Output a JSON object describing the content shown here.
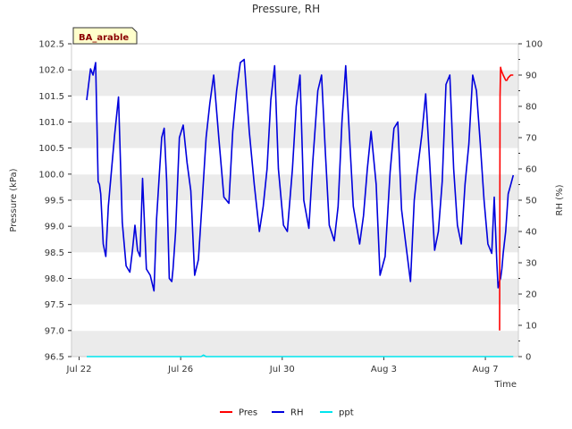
{
  "chart_data": {
    "type": "line",
    "title": "Pressure, RH",
    "badge": "BA_arable",
    "xlabel": "Time",
    "ylabel_left": "Pressure (kPa)",
    "ylabel_right": "RH (%)",
    "x_unit": "days since Jul 22",
    "xlim": [
      -0.3,
      17.3
    ],
    "ylim_left": [
      96.5,
      102.5
    ],
    "ylim_right": [
      0,
      100
    ],
    "left_ticks": [
      "96.5",
      "97.0",
      "97.5",
      "98.0",
      "98.5",
      "99.0",
      "99.5",
      "100.0",
      "100.5",
      "101.0",
      "101.5",
      "102.0",
      "102.5"
    ],
    "right_ticks": [
      "0",
      "10",
      "20",
      "30",
      "40",
      "50",
      "60",
      "70",
      "80",
      "90",
      "100"
    ],
    "x_ticks": [
      {
        "label": "Jul 22",
        "value": 0
      },
      {
        "label": "Jul 26",
        "value": 4
      },
      {
        "label": "Jul 30",
        "value": 8
      },
      {
        "label": "Aug 3",
        "value": 12
      },
      {
        "label": "Aug 7",
        "value": 16
      }
    ],
    "grid": "horizontal alternating bands",
    "legend_position": "bottom-center",
    "series": [
      {
        "name": "Pres",
        "color": "#ff0000",
        "axis": "left",
        "x": [
          16.56,
          16.58,
          16.6,
          16.62,
          16.66,
          16.7,
          16.75,
          16.8,
          16.85,
          16.9,
          17.0,
          17.1
        ],
        "values": [
          97.0,
          101.5,
          102.05,
          102.0,
          101.95,
          101.9,
          101.85,
          101.8,
          101.8,
          101.85,
          101.9,
          101.9
        ]
      },
      {
        "name": "RH",
        "color": "#0000dd",
        "axis": "right",
        "x": [
          0.3,
          0.45,
          0.55,
          0.65,
          0.75,
          0.8,
          0.85,
          0.95,
          1.05,
          1.15,
          1.3,
          1.4,
          1.55,
          1.7,
          1.85,
          2.0,
          2.1,
          2.2,
          2.3,
          2.4,
          2.5,
          2.65,
          2.8,
          2.95,
          3.05,
          3.15,
          3.25,
          3.35,
          3.45,
          3.55,
          3.65,
          3.7,
          3.8,
          3.95,
          4.1,
          4.25,
          4.4,
          4.55,
          4.7,
          4.85,
          5.0,
          5.15,
          5.3,
          5.5,
          5.7,
          5.9,
          6.05,
          6.2,
          6.35,
          6.5,
          6.7,
          6.9,
          7.1,
          7.25,
          7.4,
          7.55,
          7.7,
          7.85,
          8.05,
          8.2,
          8.4,
          8.55,
          8.7,
          8.85,
          9.05,
          9.2,
          9.4,
          9.55,
          9.7,
          9.85,
          10.05,
          10.2,
          10.35,
          10.5,
          10.65,
          10.8,
          11.05,
          11.2,
          11.35,
          11.5,
          11.7,
          11.85,
          12.05,
          12.25,
          12.4,
          12.55,
          12.7,
          12.85,
          13.05,
          13.2,
          13.3,
          13.5,
          13.65,
          13.8,
          14.0,
          14.15,
          14.3,
          14.45,
          14.6,
          14.75,
          14.9,
          15.05,
          15.2,
          15.35,
          15.5,
          15.65,
          15.8,
          15.95,
          16.1,
          16.25,
          16.35,
          16.45,
          16.5,
          16.55,
          16.6,
          16.65,
          16.7,
          16.8,
          16.9,
          17.0,
          17.1
        ],
        "values": [
          82,
          92,
          90,
          94,
          56,
          55,
          52,
          36,
          32,
          48,
          62,
          71,
          83,
          43,
          29,
          27,
          34,
          42,
          34,
          32,
          57,
          28,
          26,
          21,
          44,
          57,
          70,
          73,
          56,
          25,
          24,
          28,
          40,
          70,
          74,
          62,
          53,
          26,
          31,
          50,
          70,
          81,
          90,
          70,
          51,
          49,
          72,
          85,
          94,
          95,
          72,
          55,
          40,
          48,
          60,
          82,
          93,
          60,
          42,
          40,
          60,
          80,
          90,
          50,
          41,
          62,
          85,
          90,
          65,
          42,
          37,
          48,
          75,
          93,
          70,
          48,
          36,
          45,
          60,
          72,
          55,
          26,
          32,
          59,
          73,
          75,
          47,
          37,
          24,
          50,
          58,
          71,
          84,
          63,
          34,
          40,
          56,
          87,
          90,
          60,
          42,
          36,
          55,
          68,
          90,
          85,
          68,
          50,
          36,
          33,
          51,
          30,
          22,
          24,
          25,
          28,
          33,
          40,
          52,
          55,
          58
        ]
      },
      {
        "name": "ppt",
        "color": "#00e5ee",
        "axis": "right",
        "x": [
          0.3,
          4.8,
          4.9,
          5.0,
          17.1
        ],
        "values": [
          0,
          0,
          0.5,
          0,
          0
        ]
      }
    ]
  }
}
